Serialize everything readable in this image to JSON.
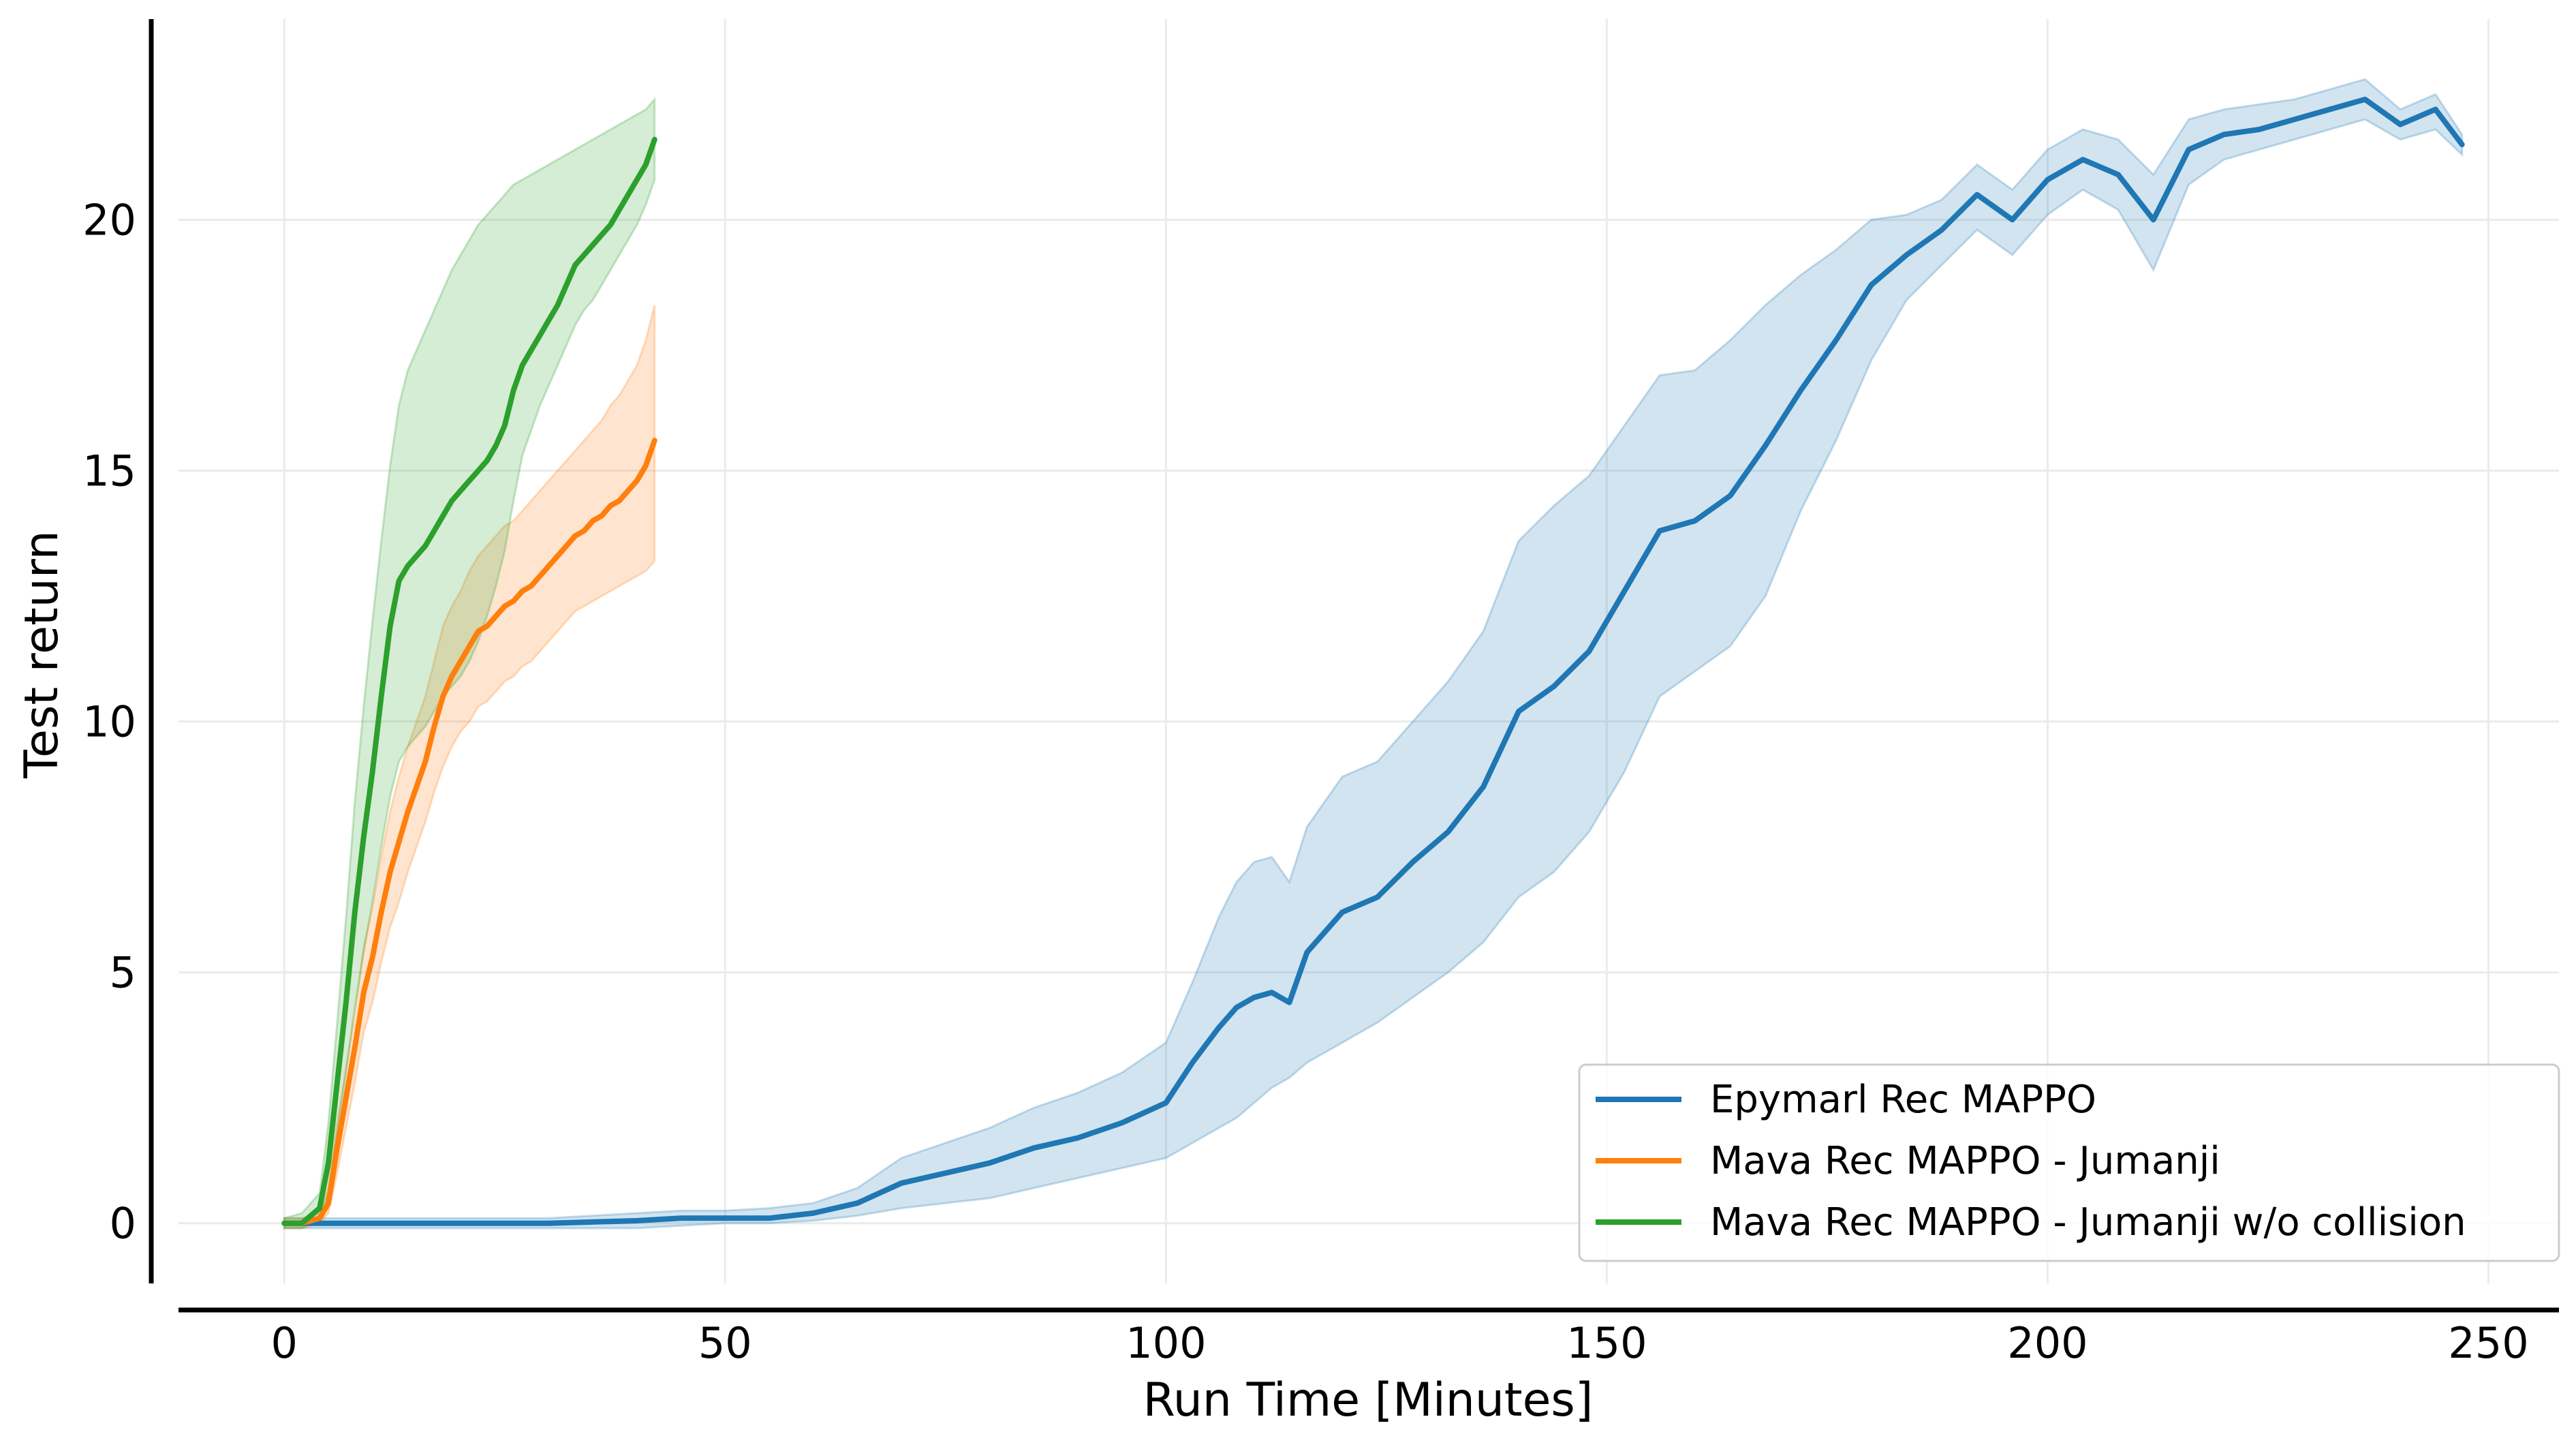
{
  "chart_data": {
    "type": "line",
    "title": "",
    "xlabel": "Run Time [Minutes]",
    "ylabel": "Test return",
    "xlim": [
      -12,
      258
    ],
    "ylim": [
      -1.2,
      24.0
    ],
    "x_ticks": [
      0,
      50,
      100,
      150,
      200,
      250
    ],
    "y_ticks": [
      0,
      5,
      10,
      15,
      20
    ],
    "grid": true,
    "legend_position": "lower-right",
    "colors": {
      "blue": "#1f77b4",
      "orange": "#ff7f0e",
      "green": "#2ca02c"
    },
    "series": [
      {
        "name": "Epymarl Rec MAPPO",
        "color": "#1f77b4",
        "x": [
          0,
          5,
          10,
          20,
          30,
          40,
          45,
          50,
          55,
          60,
          65,
          70,
          75,
          80,
          85,
          90,
          95,
          100,
          103,
          106,
          108,
          110,
          112,
          114,
          116,
          120,
          124,
          128,
          132,
          136,
          140,
          144,
          148,
          152,
          156,
          160,
          164,
          168,
          172,
          176,
          180,
          184,
          188,
          192,
          196,
          200,
          204,
          208,
          212,
          216,
          220,
          224,
          228,
          232,
          236,
          240,
          244,
          247
        ],
        "y": [
          0,
          0,
          0,
          0,
          0,
          0.05,
          0.1,
          0.1,
          0.1,
          0.2,
          0.4,
          0.8,
          1.0,
          1.2,
          1.5,
          1.7,
          2.0,
          2.4,
          3.2,
          3.9,
          4.3,
          4.5,
          4.6,
          4.4,
          5.4,
          6.2,
          6.5,
          7.2,
          7.8,
          8.7,
          10.2,
          10.7,
          11.4,
          12.6,
          13.8,
          14.0,
          14.5,
          15.5,
          16.6,
          17.6,
          18.7,
          19.3,
          19.8,
          20.5,
          20.0,
          20.8,
          21.2,
          20.9,
          20.0,
          21.4,
          21.7,
          21.8,
          22.0,
          22.2,
          22.4,
          21.9,
          22.2,
          21.5
        ],
        "lower": [
          -0.1,
          -0.1,
          -0.1,
          -0.1,
          -0.1,
          -0.1,
          -0.05,
          0,
          0,
          0.05,
          0.15,
          0.3,
          0.4,
          0.5,
          0.7,
          0.9,
          1.1,
          1.3,
          1.6,
          1.9,
          2.1,
          2.4,
          2.7,
          2.9,
          3.2,
          3.6,
          4.0,
          4.5,
          5.0,
          5.6,
          6.5,
          7.0,
          7.8,
          9.0,
          10.5,
          11.0,
          11.5,
          12.5,
          14.2,
          15.6,
          17.2,
          18.4,
          19.1,
          19.8,
          19.3,
          20.1,
          20.6,
          20.2,
          19.0,
          20.7,
          21.2,
          21.4,
          21.6,
          21.8,
          22.0,
          21.6,
          21.8,
          21.3
        ],
        "upper": [
          0.1,
          0.1,
          0.1,
          0.1,
          0.1,
          0.2,
          0.25,
          0.25,
          0.3,
          0.4,
          0.7,
          1.3,
          1.6,
          1.9,
          2.3,
          2.6,
          3.0,
          3.6,
          4.8,
          6.1,
          6.8,
          7.2,
          7.3,
          6.8,
          7.9,
          8.9,
          9.2,
          10.0,
          10.8,
          11.8,
          13.6,
          14.3,
          14.9,
          15.9,
          16.9,
          17.0,
          17.6,
          18.3,
          18.9,
          19.4,
          20.0,
          20.1,
          20.4,
          21.1,
          20.6,
          21.4,
          21.8,
          21.6,
          20.9,
          22.0,
          22.2,
          22.3,
          22.4,
          22.6,
          22.8,
          22.2,
          22.5,
          21.7
        ]
      },
      {
        "name": "Mava Rec MAPPO - Jumanji",
        "color": "#ff7f0e",
        "x": [
          0,
          2,
          4,
          5,
          6,
          7,
          8,
          9,
          10,
          11,
          12,
          13,
          14,
          15,
          16,
          17,
          18,
          19,
          20,
          21,
          22,
          23,
          24,
          25,
          26,
          27,
          28,
          29,
          30,
          31,
          32,
          33,
          34,
          35,
          36,
          37,
          38,
          39,
          40,
          41,
          42
        ],
        "y": [
          0,
          0,
          0.1,
          0.4,
          1.5,
          2.5,
          3.5,
          4.6,
          5.3,
          6.2,
          7.0,
          7.6,
          8.2,
          8.7,
          9.2,
          9.9,
          10.5,
          10.9,
          11.2,
          11.5,
          11.8,
          11.9,
          12.1,
          12.3,
          12.4,
          12.6,
          12.7,
          12.9,
          13.1,
          13.3,
          13.5,
          13.7,
          13.8,
          14.0,
          14.1,
          14.3,
          14.4,
          14.6,
          14.8,
          15.1,
          15.6
        ],
        "lower": [
          -0.1,
          -0.1,
          0,
          0.2,
          1.0,
          1.9,
          2.8,
          3.8,
          4.4,
          5.2,
          5.9,
          6.4,
          7.0,
          7.5,
          8.0,
          8.6,
          9.1,
          9.5,
          9.8,
          10.0,
          10.3,
          10.4,
          10.6,
          10.8,
          10.9,
          11.1,
          11.2,
          11.4,
          11.6,
          11.8,
          12.0,
          12.2,
          12.3,
          12.4,
          12.5,
          12.6,
          12.7,
          12.8,
          12.9,
          13.0,
          13.2
        ],
        "upper": [
          0.1,
          0.1,
          0.2,
          0.7,
          2.0,
          3.1,
          4.2,
          5.5,
          6.3,
          7.3,
          8.2,
          8.9,
          9.5,
          10.0,
          10.5,
          11.2,
          11.9,
          12.3,
          12.6,
          13.0,
          13.3,
          13.5,
          13.7,
          13.9,
          14.0,
          14.2,
          14.4,
          14.6,
          14.8,
          15.0,
          15.2,
          15.4,
          15.6,
          15.8,
          16.0,
          16.3,
          16.5,
          16.8,
          17.1,
          17.6,
          18.3
        ]
      },
      {
        "name": "Mava Rec MAPPO - Jumanji w/o collision",
        "color": "#2ca02c",
        "x": [
          0,
          2,
          4,
          5,
          6,
          7,
          8,
          9,
          10,
          11,
          12,
          13,
          14,
          15,
          16,
          17,
          18,
          19,
          20,
          21,
          22,
          23,
          24,
          25,
          26,
          27,
          28,
          29,
          30,
          31,
          32,
          33,
          34,
          35,
          36,
          37,
          38,
          39,
          40,
          41,
          42
        ],
        "y": [
          0,
          0,
          0.3,
          1.2,
          2.8,
          4.4,
          6.2,
          7.7,
          9.0,
          10.5,
          11.9,
          12.8,
          13.1,
          13.3,
          13.5,
          13.8,
          14.1,
          14.4,
          14.6,
          14.8,
          15.0,
          15.2,
          15.5,
          15.9,
          16.6,
          17.1,
          17.4,
          17.7,
          18.0,
          18.3,
          18.7,
          19.1,
          19.3,
          19.5,
          19.7,
          19.9,
          20.2,
          20.5,
          20.8,
          21.1,
          21.6
        ],
        "lower": [
          -0.1,
          -0.1,
          0.1,
          0.6,
          1.8,
          3.0,
          4.3,
          5.4,
          6.4,
          7.5,
          8.5,
          9.2,
          9.5,
          9.7,
          9.9,
          10.2,
          10.5,
          10.7,
          10.9,
          11.2,
          11.6,
          12.1,
          12.7,
          13.4,
          14.4,
          15.3,
          15.8,
          16.3,
          16.7,
          17.1,
          17.5,
          17.9,
          18.2,
          18.4,
          18.7,
          19.0,
          19.3,
          19.6,
          19.9,
          20.3,
          20.8
        ],
        "upper": [
          0.1,
          0.2,
          0.6,
          2.0,
          4.0,
          6.1,
          8.4,
          10.3,
          12.0,
          13.6,
          15.1,
          16.3,
          17.0,
          17.4,
          17.8,
          18.2,
          18.6,
          19.0,
          19.3,
          19.6,
          19.9,
          20.1,
          20.3,
          20.5,
          20.7,
          20.8,
          20.9,
          21.0,
          21.1,
          21.2,
          21.3,
          21.4,
          21.5,
          21.6,
          21.7,
          21.8,
          21.9,
          22.0,
          22.1,
          22.2,
          22.4
        ]
      }
    ]
  }
}
